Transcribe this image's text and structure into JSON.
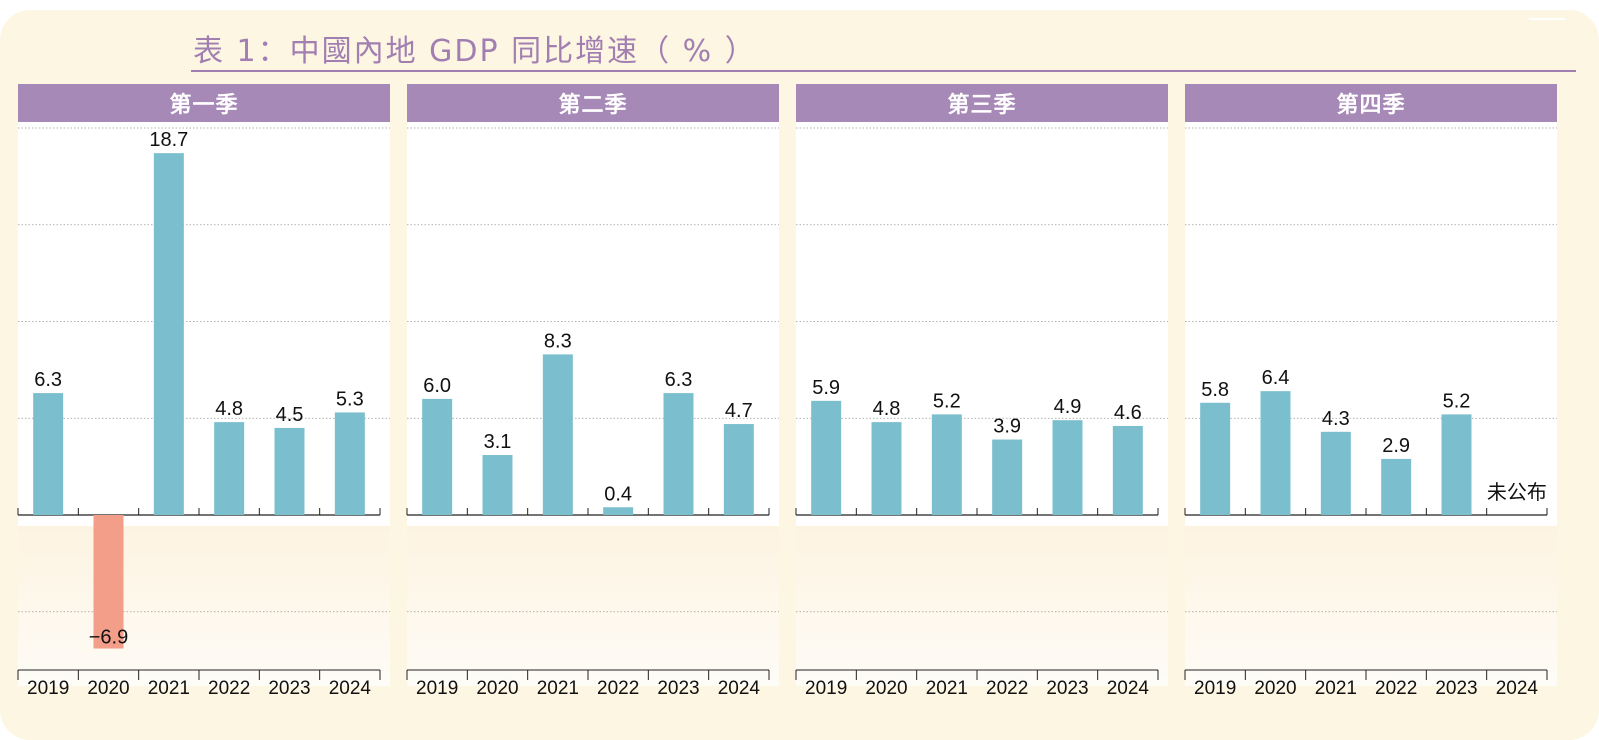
{
  "title": "表 1：中國內地 GDP 同比增速（ % ）",
  "chart_data": {
    "type": "bar",
    "title": "表 1：中國內地 GDP 同比增速（ % ）",
    "xlabel": "",
    "ylabel": "",
    "ylim": [
      -10,
      25
    ],
    "grid": true,
    "panels": [
      {
        "name": "第一季",
        "categories": [
          "2019",
          "2020",
          "2021",
          "2022",
          "2023",
          "2024"
        ],
        "values": [
          6.3,
          -6.9,
          18.7,
          4.8,
          4.5,
          5.3
        ],
        "labels": [
          "6.3",
          "−6.9",
          "18.7",
          "4.8",
          "4.5",
          "5.3"
        ]
      },
      {
        "name": "第二季",
        "categories": [
          "2019",
          "2020",
          "2021",
          "2022",
          "2023",
          "2024"
        ],
        "values": [
          6.0,
          3.1,
          8.3,
          0.4,
          6.3,
          4.7
        ],
        "labels": [
          "6.0",
          "3.1",
          "8.3",
          "0.4",
          "6.3",
          "4.7"
        ]
      },
      {
        "name": "第三季",
        "categories": [
          "2019",
          "2020",
          "2021",
          "2022",
          "2023",
          "2024"
        ],
        "values": [
          5.9,
          4.8,
          5.2,
          3.9,
          4.9,
          4.6
        ],
        "labels": [
          "5.9",
          "4.8",
          "5.2",
          "3.9",
          "4.9",
          "4.6"
        ]
      },
      {
        "name": "第四季",
        "categories": [
          "2019",
          "2020",
          "2021",
          "2022",
          "2023",
          "2024"
        ],
        "values": [
          5.8,
          6.4,
          4.3,
          2.9,
          5.2,
          null
        ],
        "labels": [
          "5.8",
          "6.4",
          "4.3",
          "2.9",
          "5.2",
          "未公布"
        ]
      }
    ],
    "colors": {
      "positive": "#7bbfce",
      "negative": "#f39e88",
      "header": "#a689b6",
      "title": "#a27fb1"
    }
  }
}
